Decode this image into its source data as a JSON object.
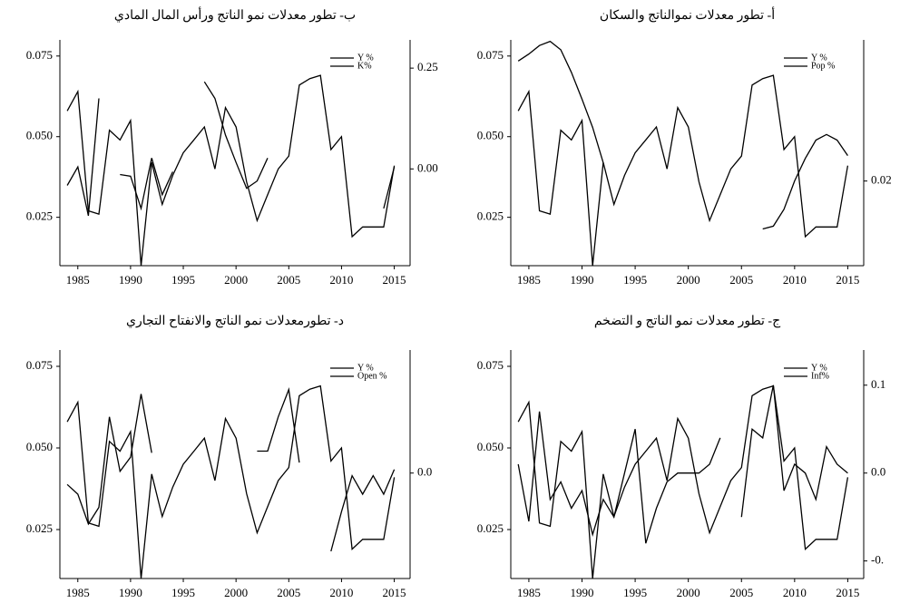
{
  "chart_data": [
    {
      "type": "line",
      "title": "أ- تطور معدلات نموالناتج والسكان",
      "x": [
        1984,
        1985,
        1986,
        1987,
        1988,
        1989,
        1990,
        1991,
        1992,
        1993,
        1994,
        1995,
        1996,
        1997,
        1998,
        1999,
        2000,
        2001,
        2002,
        2003,
        2004,
        2005,
        2006,
        2007,
        2008,
        2009,
        2010,
        2011,
        2012,
        2013,
        2014,
        2015
      ],
      "xlim": [
        1983.3,
        2016.5
      ],
      "xticks": [
        1985,
        1990,
        1995,
        2000,
        2005,
        2010,
        2015
      ],
      "ylim": [
        0.01,
        0.08
      ],
      "yticks": [
        {
          "value": 0.025,
          "label": "0.025"
        },
        {
          "value": 0.05,
          "label": "0.050"
        },
        {
          "value": 0.075,
          "label": "0.075"
        }
      ],
      "y2lim": [
        0.014,
        0.03
      ],
      "y2ticks": [
        0.02
      ],
      "series": [
        {
          "name": "Y %",
          "color": "#000000",
          "values": [
            0.058,
            0.064,
            0.027,
            0.026,
            0.052,
            0.049,
            0.055,
            0.01,
            0.042,
            0.029,
            0.038,
            0.045,
            0.049,
            0.053,
            0.04,
            0.059,
            0.053,
            0.036,
            0.024,
            0.032,
            0.04,
            0.044,
            0.066,
            0.068,
            0.069,
            0.046,
            0.05,
            0.019,
            0.022,
            0.022,
            0.022,
            0.041
          ]
        },
        {
          "name": "Pop %",
          "color": "#000000",
          "axis": "y2",
          "values": [
            0.0285,
            0.029,
            0.0296,
            0.0299,
            0.0293,
            0.0277,
            0.0258,
            0.0238,
            0.0213,
            null,
            null,
            null,
            null,
            null,
            null,
            null,
            null,
            null,
            null,
            null,
            null,
            null,
            null,
            0.0166,
            0.0168,
            0.018,
            0.02,
            0.0216,
            0.0229,
            0.0233,
            0.0229,
            0.0218
          ]
        }
      ]
    },
    {
      "type": "line",
      "title": "ب- تطور معدلات نمو الناتج ورأس المال المادي",
      "x": [
        1984,
        1985,
        1986,
        1987,
        1988,
        1989,
        1990,
        1991,
        1992,
        1993,
        1994,
        1995,
        1996,
        1997,
        1998,
        1999,
        2000,
        2001,
        2002,
        2003,
        2004,
        2005,
        2006,
        2007,
        2008,
        2009,
        2010,
        2011,
        2012,
        2013,
        2014,
        2015
      ],
      "xlim": [
        1983.3,
        2016.5
      ],
      "xticks": [
        1985,
        1990,
        1995,
        2000,
        2005,
        2010,
        2015
      ],
      "ylim": [
        0.01,
        0.08
      ],
      "yticks": [
        {
          "value": 0.025,
          "label": "0.025"
        },
        {
          "value": 0.05,
          "label": "0.050"
        },
        {
          "value": 0.075,
          "label": "0.075"
        }
      ],
      "y2lim": [
        -0.24,
        0.32
      ],
      "y2ticks": [
        {
          "value": 0,
          "label": "0.00"
        },
        0.25
      ],
      "series": [
        {
          "name": "Y %",
          "color": "#000000",
          "values": [
            0.058,
            0.064,
            0.027,
            0.026,
            0.052,
            0.049,
            0.055,
            0.01,
            0.042,
            0.029,
            0.038,
            0.045,
            0.049,
            0.053,
            0.04,
            0.059,
            0.053,
            0.036,
            0.024,
            0.032,
            0.04,
            0.044,
            0.066,
            0.068,
            0.069,
            0.046,
            0.05,
            0.019,
            0.022,
            0.022,
            0.022,
            0.041
          ]
        },
        {
          "name": "K%",
          "color": "#000000",
          "axis": "y2",
          "values": [
            -0.041,
            0.005,
            -0.116,
            0.175,
            null,
            -0.014,
            -0.018,
            -0.098,
            0.027,
            -0.064,
            -0.007,
            null,
            null,
            0.216,
            0.175,
            0.084,
            0.016,
            -0.048,
            -0.03,
            0.027,
            null,
            null,
            null,
            null,
            null,
            null,
            null,
            null,
            null,
            null,
            -0.098,
            0.005
          ]
        }
      ]
    },
    {
      "type": "line",
      "title": "ج- تطور معدلات نمو الناتج و التضخم",
      "x": [
        1984,
        1985,
        1986,
        1987,
        1988,
        1989,
        1990,
        1991,
        1992,
        1993,
        1994,
        1995,
        1996,
        1997,
        1998,
        1999,
        2000,
        2001,
        2002,
        2003,
        2004,
        2005,
        2006,
        2007,
        2008,
        2009,
        2010,
        2011,
        2012,
        2013,
        2014,
        2015
      ],
      "xlim": [
        1983.3,
        2016.5
      ],
      "xticks": [
        1985,
        1990,
        1995,
        2000,
        2005,
        2010,
        2015
      ],
      "ylim": [
        0.01,
        0.08
      ],
      "yticks": [
        {
          "value": 0.025,
          "label": "0.025"
        },
        {
          "value": 0.05,
          "label": "0.050"
        },
        {
          "value": 0.075,
          "label": "0.075"
        }
      ],
      "y2lim": [
        -0.12,
        0.14
      ],
      "y2ticks": [
        {
          "value": -0.1,
          "label": "-0."
        },
        {
          "value": 0,
          "label": "0.0"
        },
        0.1
      ],
      "series": [
        {
          "name": "Y %",
          "color": "#000000",
          "values": [
            0.058,
            0.064,
            0.027,
            0.026,
            0.052,
            0.049,
            0.055,
            0.01,
            0.042,
            0.029,
            0.038,
            0.045,
            0.049,
            0.053,
            0.04,
            0.059,
            0.053,
            0.036,
            0.024,
            0.032,
            0.04,
            0.044,
            0.066,
            0.068,
            0.069,
            0.046,
            0.05,
            0.019,
            0.022,
            0.022,
            0.022,
            0.041
          ]
        },
        {
          "name": "Inf%",
          "color": "#000000",
          "axis": "y2",
          "values": [
            0.01,
            -0.055,
            0.07,
            -0.03,
            -0.01,
            -0.04,
            -0.02,
            -0.07,
            -0.03,
            -0.05,
            0.0,
            0.05,
            -0.08,
            -0.04,
            -0.01,
            0.0,
            0.0,
            0.0,
            0.01,
            0.04,
            null,
            -0.05,
            0.05,
            0.04,
            0.1,
            -0.02,
            0.01,
            0.0,
            -0.03,
            0.03,
            0.01,
            0.0
          ]
        }
      ]
    },
    {
      "type": "line",
      "title": "د- تطورمعدلات نمو الناتج والانفتاح التجاري",
      "x": [
        1984,
        1985,
        1986,
        1987,
        1988,
        1989,
        1990,
        1991,
        1992,
        1993,
        1994,
        1995,
        1996,
        1997,
        1998,
        1999,
        2000,
        2001,
        2002,
        2003,
        2004,
        2005,
        2006,
        2007,
        2008,
        2009,
        2010,
        2011,
        2012,
        2013,
        2014,
        2015
      ],
      "xlim": [
        1983.3,
        2016.5
      ],
      "xticks": [
        1985,
        1990,
        1995,
        2000,
        2005,
        2010,
        2015
      ],
      "ylim": [
        0.01,
        0.08
      ],
      "yticks": [
        {
          "value": 0.025,
          "label": "0.025"
        },
        {
          "value": 0.05,
          "label": "0.050"
        },
        {
          "value": 0.075,
          "label": "0.075"
        }
      ],
      "y2lim": [
        -0.12,
        0.14
      ],
      "y2ticks": [
        {
          "value": 0,
          "label": "0.0"
        }
      ],
      "series": [
        {
          "name": "Y %",
          "color": "#000000",
          "values": [
            0.058,
            0.064,
            0.027,
            0.026,
            0.052,
            0.049,
            0.055,
            0.01,
            0.042,
            0.029,
            0.038,
            0.045,
            0.049,
            0.053,
            0.04,
            0.059,
            0.053,
            0.036,
            0.024,
            0.032,
            0.04,
            0.044,
            0.066,
            0.068,
            0.069,
            0.046,
            0.05,
            0.019,
            0.022,
            0.022,
            0.022,
            0.041
          ]
        },
        {
          "name": "Open %",
          "color": "#000000",
          "axis": "y2",
          "values": [
            -0.013,
            -0.024,
            -0.058,
            -0.039,
            0.064,
            0.002,
            0.018,
            0.09,
            0.023,
            null,
            null,
            null,
            null,
            null,
            null,
            null,
            null,
            null,
            0.025,
            0.025,
            0.064,
            0.095,
            0.012,
            null,
            null,
            -0.089,
            -0.044,
            -0.003,
            -0.024,
            -0.003,
            -0.024,
            0.004
          ]
        }
      ]
    }
  ]
}
